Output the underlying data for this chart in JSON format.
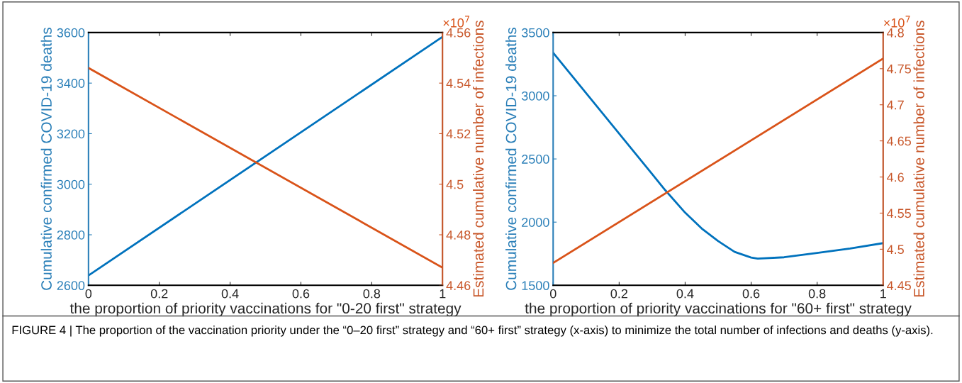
{
  "chart_data": [
    {
      "type": "line",
      "xlabel": "the proportion of priority vaccinations for \"0-20 first\" strategy",
      "ylabel": "Cumulative confirmed COVID-19 deaths",
      "y2label": "Estimated cumulative number of infections",
      "xlim": [
        0,
        1
      ],
      "xticks": [
        0,
        0.2,
        0.4,
        0.6,
        0.8,
        1
      ],
      "ylim": [
        2600,
        3600
      ],
      "yticks": [
        2600,
        2800,
        3000,
        3200,
        3400,
        3600
      ],
      "y2lim": [
        4.46,
        4.56
      ],
      "y2ticks": [
        4.46,
        4.48,
        4.5,
        4.52,
        4.54,
        4.56
      ],
      "grid": false,
      "legend": false,
      "series": [
        {
          "color": "#0072bd",
          "x": [
            0,
            1
          ],
          "values": [
            2639,
            3583
          ]
        },
        {
          "color": "#d95319",
          "axis": "y2",
          "x": [
            0,
            1
          ],
          "values": [
            4.546,
            4.467
          ]
        }
      ],
      "annotations": [
        "×10$^{7}$",
        "FIGURE 4 | The proportion of the vaccination priority under the “0–20 first” strategy and “60+ first” strategy (x-axis) to minimize the total number of infections and deaths (y-axis)."
      ]
    },
    {
      "type": "line",
      "xlabel": "the proportion of priority vaccinations for \"60+ first\" strategy",
      "ylabel": "Cumulative confirmed COVID-19 deaths",
      "y2label": "Estimated cumulative number of infections",
      "xlim": [
        0,
        1
      ],
      "xticks": [
        0,
        0.2,
        0.4,
        0.6,
        0.8,
        1
      ],
      "ylim": [
        1500,
        3500
      ],
      "yticks": [
        1500,
        2000,
        2500,
        3000,
        3500
      ],
      "y2lim": [
        4.45,
        4.8
      ],
      "y2ticks": [
        4.45,
        4.5,
        4.55,
        4.6,
        4.65,
        4.7,
        4.75,
        4.8
      ],
      "grid": false,
      "legend": false,
      "series": [
        {
          "color": "#0072bd",
          "x": [
            0,
            0.1,
            0.2,
            0.3,
            0.34,
            0.4,
            0.45,
            0.5,
            0.55,
            0.6,
            0.62,
            0.7,
            0.8,
            0.9,
            1
          ],
          "values": [
            3340,
            3020,
            2700,
            2380,
            2252,
            2075,
            1950,
            1850,
            1765,
            1720,
            1712,
            1722,
            1757,
            1791,
            1834
          ]
        },
        {
          "color": "#d95319",
          "axis": "y2",
          "x": [
            0,
            1
          ],
          "values": [
            4.481,
            4.764
          ]
        }
      ],
      "annotations": [
        "×10$^{7}$"
      ]
    }
  ]
}
